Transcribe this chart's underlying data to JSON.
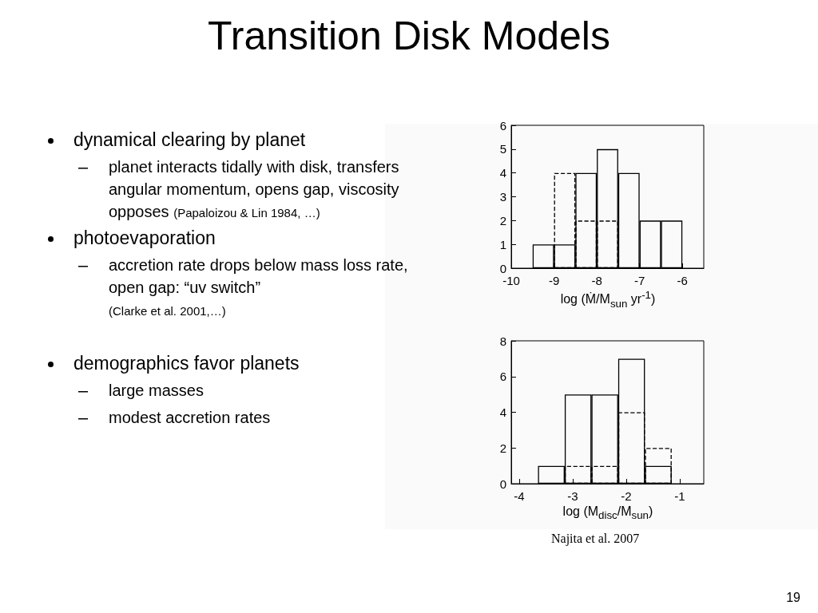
{
  "chart_data": [
    {
      "type": "histogram",
      "title": "Transition Disk Models",
      "xlabel": "log (Ṁ/M$_{sun}$ yr$^{-1}$)",
      "annotations": [
        "dynamical clearing by planet",
        "planet interacts tidally with disk, transfers angular momentum, opens gap, viscosity opposes",
        "(Papaloizou & Lin 1984, …)",
        "photoevaporation",
        "accretion rate drops below mass loss rate, open gap: “uv switch”",
        "(Clarke et al. 2001,…)",
        "demographics favor planets",
        "large masses",
        "modest accretion rates"
      ],
      "bins": [
        -9.5,
        -9,
        -8.5,
        -8,
        -7.5,
        -7,
        -6.5,
        -6
      ],
      "series": [
        {
          "color": "#000000",
          "line_style": "solid",
          "values": [
            1,
            1,
            4,
            5,
            4,
            2,
            2
          ]
        },
        {
          "color": "#000000",
          "line_style": "dashed",
          "values": [
            null,
            4,
            2,
            2,
            null,
            null,
            null
          ]
        }
      ],
      "xlim": [
        -10,
        -5.5
      ],
      "xticks": [
        -10,
        -9,
        -8,
        -7,
        -6
      ],
      "ylim": [
        0,
        6
      ],
      "yticks": [
        0,
        1,
        2,
        3,
        4,
        5,
        6
      ]
    },
    {
      "type": "histogram",
      "xlabel": "log (M$_{disc}$/M$_{sun}$)",
      "annotations": [
        "Najita et al. 2007",
        "19"
      ],
      "bins": [
        -3.65,
        -3.15,
        -2.65,
        -2.15,
        -1.65,
        -1.15
      ],
      "series": [
        {
          "color": "#000000",
          "line_style": "solid",
          "values": [
            1,
            5,
            5,
            7,
            1
          ]
        },
        {
          "color": "#000000",
          "line_style": "dashed",
          "values": [
            null,
            1,
            1,
            4,
            2
          ]
        }
      ],
      "xlim": [
        -4.15,
        -0.55
      ],
      "xticks": [
        -4,
        -3,
        -2,
        -1
      ],
      "ylim": [
        0,
        8
      ],
      "yticks": [
        0,
        2,
        4,
        6,
        8
      ]
    }
  ]
}
